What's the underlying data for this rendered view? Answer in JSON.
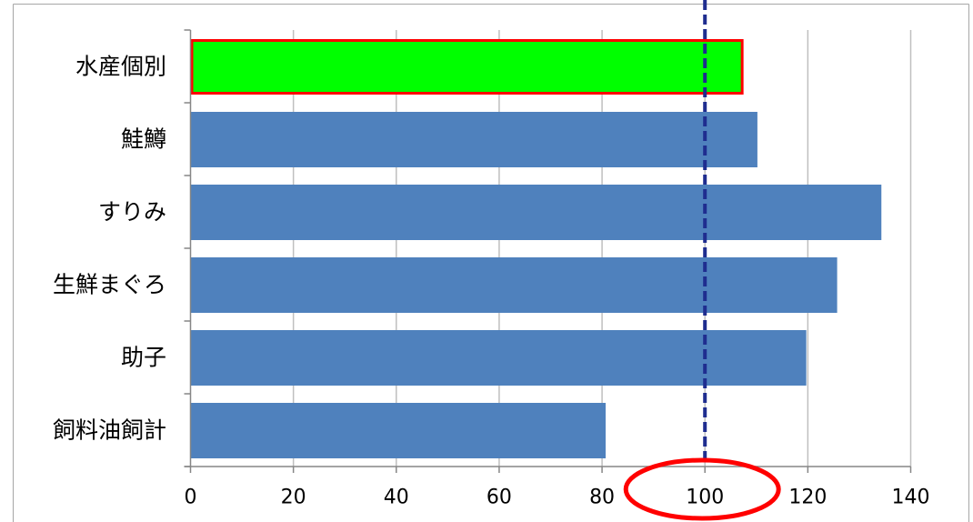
{
  "chart_data": {
    "type": "bar",
    "horizontal": true,
    "categories": [
      "水産個別",
      "鮭鱒",
      "すりみ",
      "生鮮まぐろ",
      "助子",
      "飼料油飼計"
    ],
    "values": [
      107.5,
      110.2,
      134.3,
      125.7,
      119.7,
      80.7
    ],
    "xlim": [
      0,
      140
    ],
    "x_ticks": [
      0,
      20,
      40,
      60,
      80,
      100,
      120,
      140
    ],
    "grid": true,
    "legend": false,
    "highlight": {
      "index": 0,
      "fill": "#00ff00",
      "border": "#ff0000"
    },
    "reference_line": {
      "x": 100,
      "dashed": true,
      "color": "#1f2d8f"
    },
    "circled_x_tick": {
      "value": 100,
      "color": "#ff0000"
    },
    "colors": {
      "bar": "#4f81bd",
      "gridline": "#bfbfbf",
      "axis": "#868686",
      "frame": "#a6a6a6",
      "text": "#000000"
    }
  }
}
